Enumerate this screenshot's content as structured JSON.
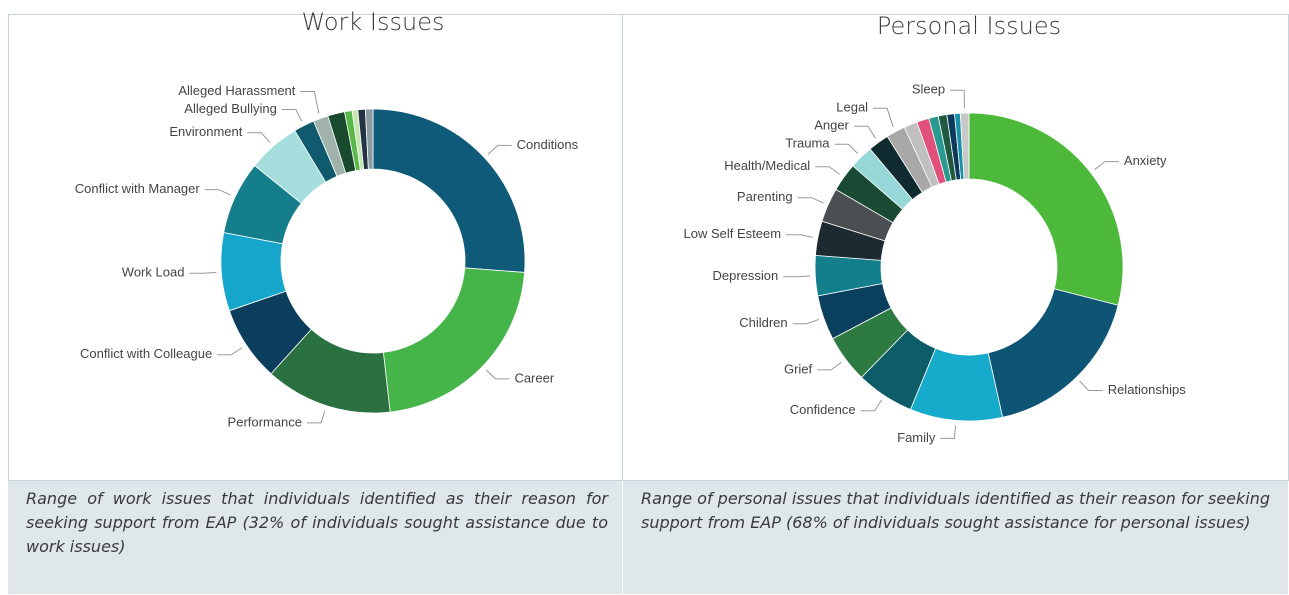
{
  "chart_data": [
    {
      "type": "donut",
      "title": "Work Issues",
      "categories": [
        "Conditions",
        "Career",
        "Performance",
        "Conflict with Colleague",
        "Work Load",
        "Conflict with Manager",
        "Environment",
        "Alleged Bullying",
        "Alleged Harassment",
        null,
        null,
        null,
        null,
        null
      ],
      "values": [
        26.2,
        22,
        13.5,
        8,
        8.3,
        7.8,
        5.6,
        2.2,
        1.6,
        1.8,
        0.8,
        0.6,
        0.8,
        0.8
      ],
      "colors": [
        "#0e5a78",
        "#45b449",
        "#2a7040",
        "#0b3e5c",
        "#16a6cc",
        "#147e8a",
        "#a6dede",
        "#0f5a6c",
        "#9fb3aa",
        "#1a4a2e",
        "#58b848",
        "#c6e6b0",
        "#223344",
        "#8a9aa0"
      ]
    },
    {
      "type": "donut",
      "title": "Personal Issues",
      "categories": [
        "Anxiety",
        "Relationships",
        "Family",
        "Confidence",
        "Grief",
        "Children",
        "Depression",
        "Low Self Esteem",
        "Parenting",
        "Health/Medical",
        "Trauma",
        "Anger",
        "Legal",
        null,
        null,
        null,
        null,
        null,
        null,
        "Sleep"
      ],
      "values": [
        29,
        17.5,
        9.7,
        6.1,
        5,
        4.7,
        4.2,
        3.6,
        3.6,
        3,
        2.5,
        2.2,
        2.0,
        1.4,
        1.3,
        1.0,
        0.9,
        0.8,
        0.6,
        0.9
      ],
      "colors": [
        "#4cb93a",
        "#0e5474",
        "#16abca",
        "#0d5d68",
        "#2d7a42",
        "#0b3f5e",
        "#137f8c",
        "#1d2a30",
        "#4a4f52",
        "#1b4a34",
        "#96d8d8",
        "#0f2b30",
        "#a8a8a8",
        "#c0c0c0",
        "#e0507a",
        "#2a9a90",
        "#1f5a40",
        "#0b3a5a",
        "#1890a8",
        "#c8c8c8"
      ]
    }
  ],
  "captions": [
    "Range of work issues that individuals identified as their reason for seeking support from EAP (32% of individuals sought assistance due to work issues)",
    "Range of personal issues that individuals identified as their reason for seeking support from EAP (68% of individuals sought assistance for personal issues)"
  ]
}
